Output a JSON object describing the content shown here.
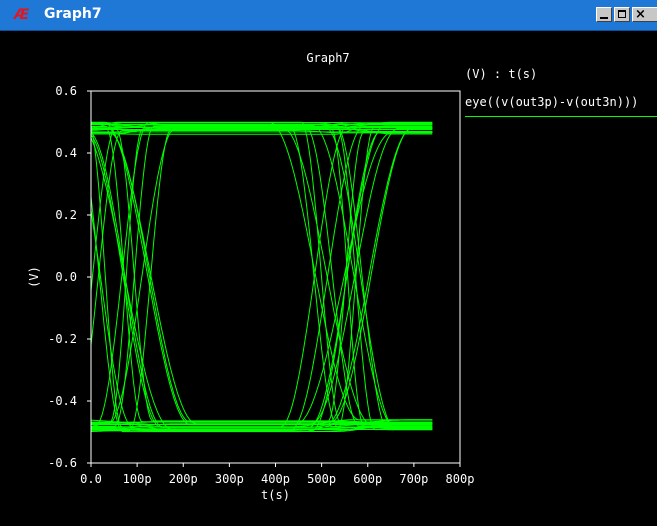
{
  "window": {
    "title": "Graph7",
    "icon": "waveform-app-icon",
    "app_icon_text": "Æ",
    "colors": {
      "titlebar": "#1f78d6",
      "background": "#000000",
      "trace": "#00ff00",
      "text": "#ffffff"
    }
  },
  "legend": {
    "units": "(V) : t(s)",
    "expression": "eye((v(out3p)-v(out3n)))",
    "color": "#00ff00"
  },
  "chart_data": {
    "type": "line",
    "subtype": "eye-diagram",
    "title": "Graph7",
    "xlabel": "t(s)",
    "ylabel": "(V)",
    "xlim": [
      0,
      800
    ],
    "ylim": [
      -0.6,
      0.6
    ],
    "x_unit": "ps",
    "x_ticks": [
      "0.0",
      "100p",
      "200p",
      "300p",
      "400p",
      "500p",
      "600p",
      "700p",
      "800p"
    ],
    "y_ticks": [
      "0.6",
      "0.4",
      "0.2",
      "0.0",
      "-0.2",
      "-0.4",
      "-0.6"
    ],
    "grid": false,
    "legend_position": "right",
    "series": [
      {
        "name": "eye((v(out3p)-v(out3n)))",
        "color": "#00ff00",
        "x_range": [
          0,
          740
        ],
        "levels": [
          -0.48,
          0.48
        ],
        "unit_interval_ps": 480,
        "crossing_points_ps": [
          60,
          540
        ],
        "overlaid_traces": 40
      }
    ]
  }
}
